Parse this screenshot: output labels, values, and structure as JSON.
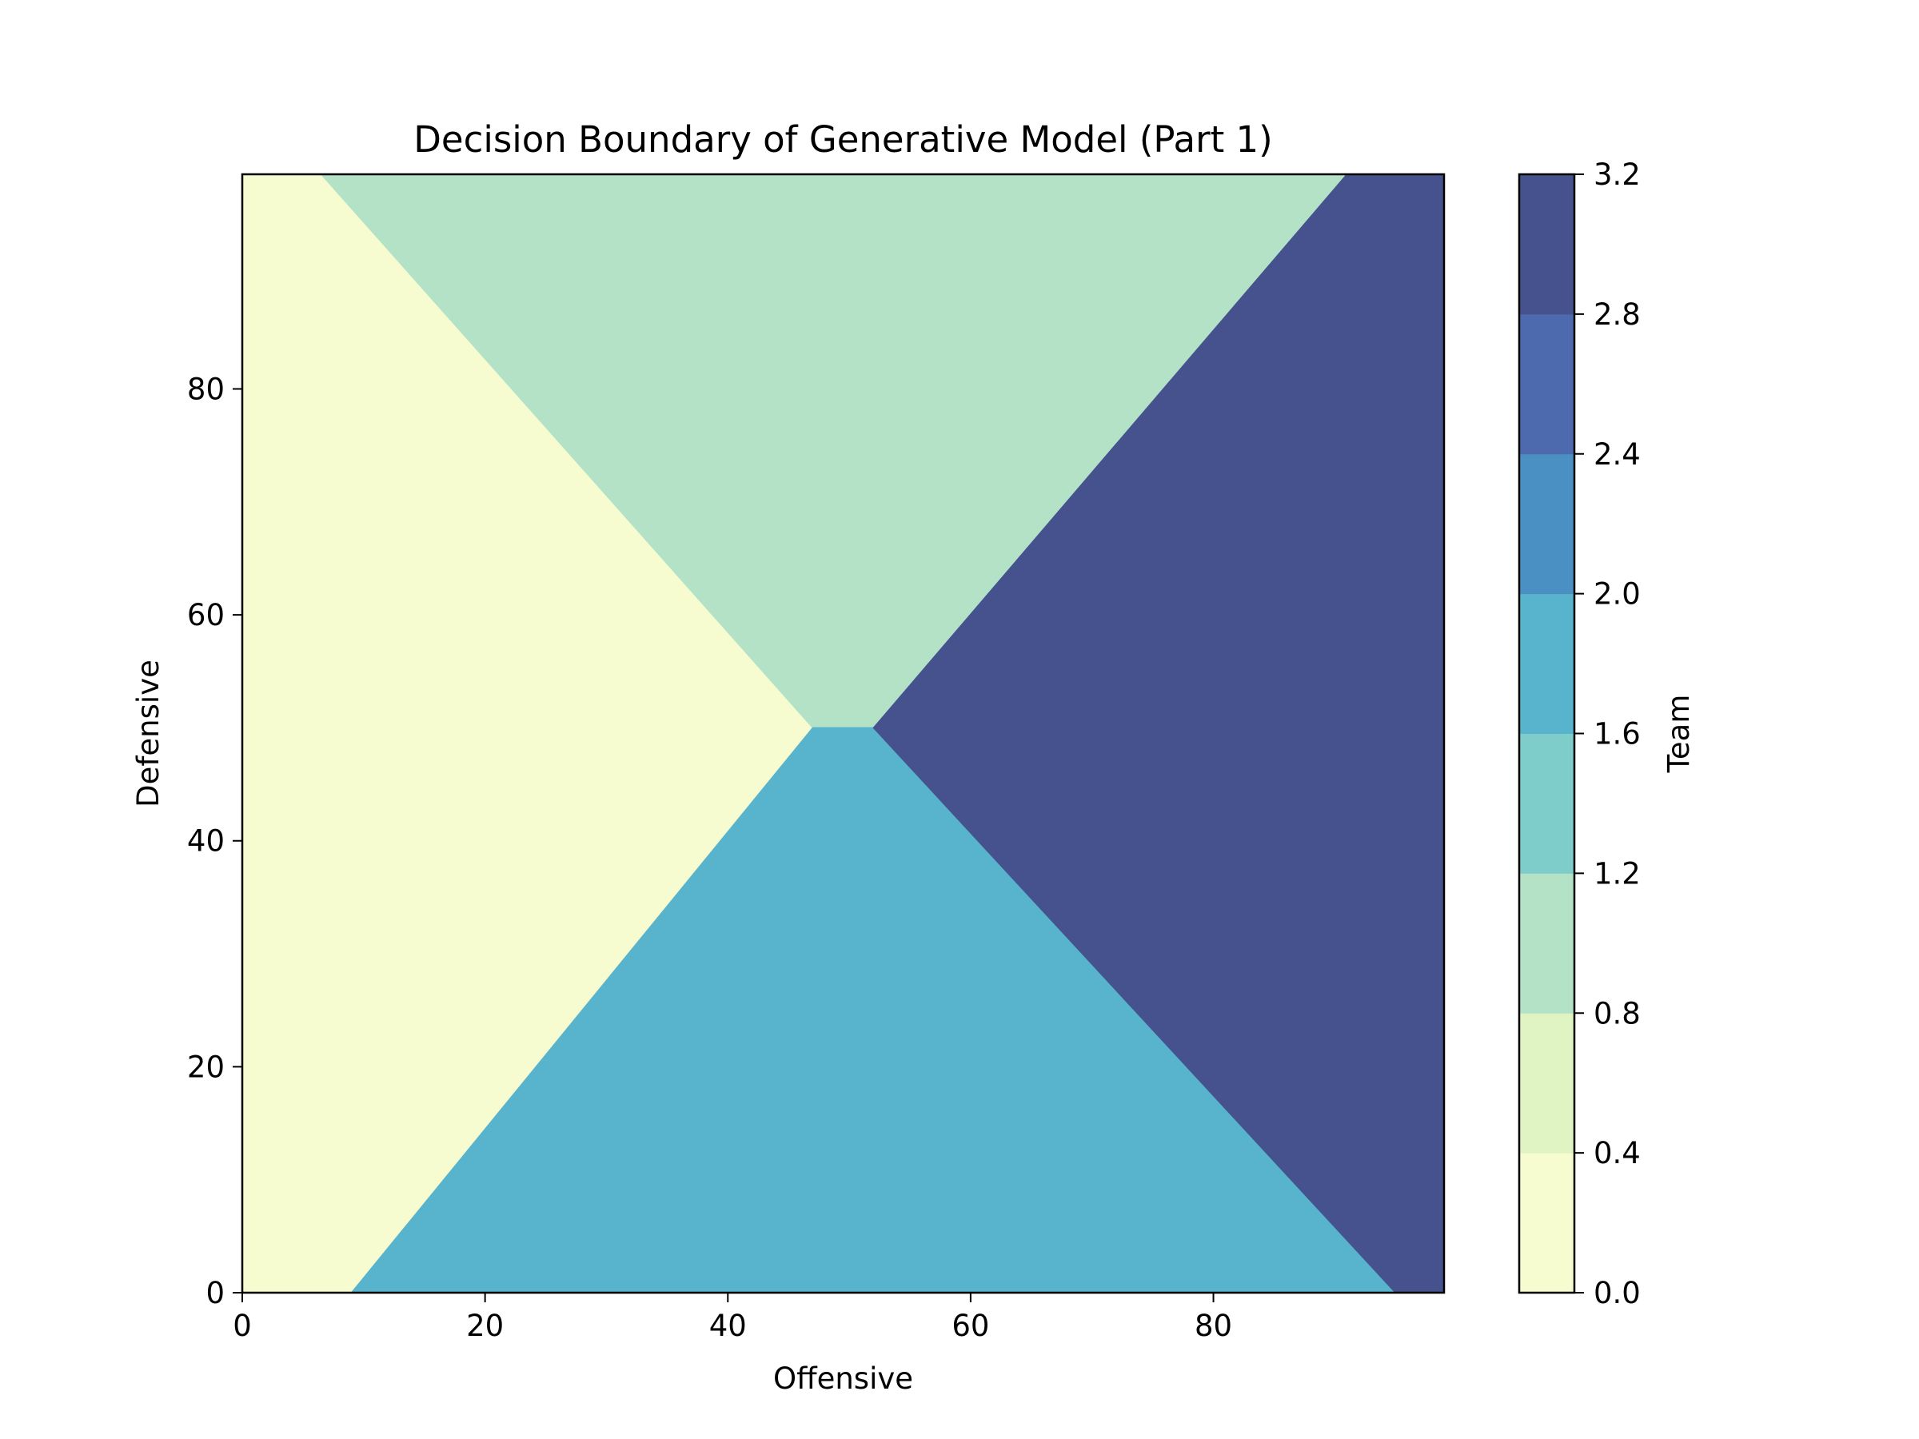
{
  "chart_data": {
    "type": "contour",
    "title": "Decision Boundary of Generative Model (Part 1)",
    "xlabel": "Offensive",
    "ylabel": "Defensive",
    "xlim": [
      0,
      99
    ],
    "ylim": [
      0,
      99
    ],
    "xticks": [
      0,
      20,
      40,
      60,
      80
    ],
    "yticks": [
      0,
      20,
      40,
      60,
      80
    ],
    "grid": false,
    "regions": [
      {
        "class": 0,
        "color": "#f6fbd0",
        "polygon": [
          [
            0,
            0
          ],
          [
            9,
            0
          ],
          [
            47,
            50
          ],
          [
            6.5,
            99
          ],
          [
            0,
            99
          ]
        ]
      },
      {
        "class": 1,
        "color": "#b3e2c7",
        "polygon": [
          [
            6.5,
            99
          ],
          [
            91,
            99
          ],
          [
            52,
            50
          ],
          [
            47,
            50
          ]
        ]
      },
      {
        "class": 2,
        "color": "#58b3cc",
        "polygon": [
          [
            9,
            0
          ],
          [
            95,
            0
          ],
          [
            52,
            50
          ],
          [
            47,
            50
          ]
        ]
      },
      {
        "class": 3,
        "color": "#45528e",
        "polygon": [
          [
            95,
            0
          ],
          [
            99,
            0
          ],
          [
            99,
            99
          ],
          [
            91,
            99
          ],
          [
            52,
            50
          ]
        ]
      }
    ],
    "colorbar": {
      "label": "Team",
      "levels": [
        0.0,
        0.4,
        0.8,
        1.2,
        1.6,
        2.0,
        2.4,
        2.8,
        3.2
      ],
      "tick_labels": [
        "0.0",
        "0.4",
        "0.8",
        "1.2",
        "1.6",
        "2.0",
        "2.4",
        "2.8",
        "3.2"
      ],
      "colors": [
        "#f6fbd0",
        "#e0f3c2",
        "#b3e2c7",
        "#7fcdca",
        "#58b3cc",
        "#4a90c2",
        "#4e6aae",
        "#45528e"
      ]
    }
  }
}
